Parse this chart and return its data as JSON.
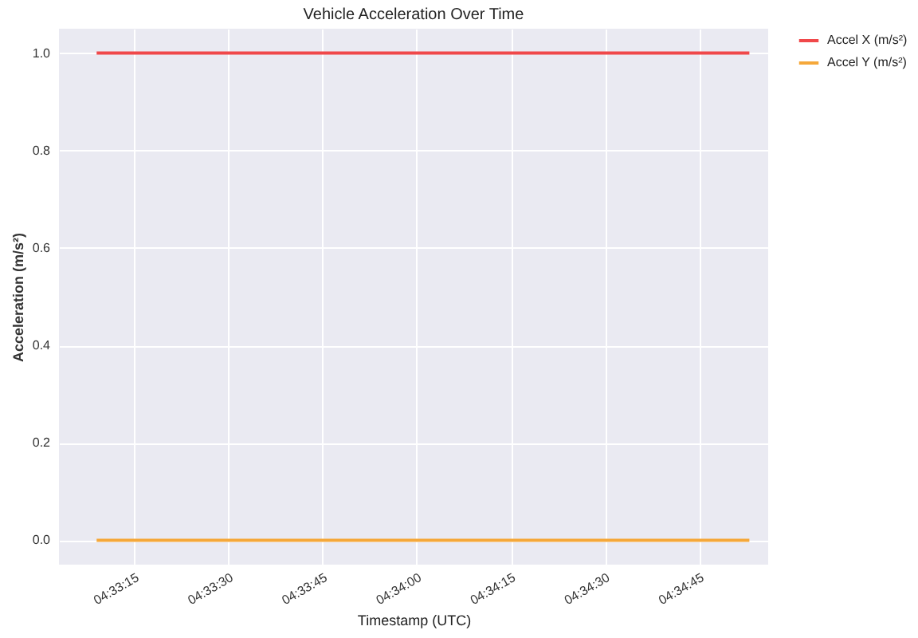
{
  "chart_data": {
    "type": "line",
    "title": "Vehicle Acceleration Over Time",
    "xlabel": "Timestamp (UTC)",
    "ylabel": "Acceleration (m/s²)",
    "x": [
      4.5525,
      4.581389
    ],
    "series": [
      {
        "name": "Accel X (m/s²)",
        "color": "#f0484a",
        "values": [
          1.0,
          1.0
        ]
      },
      {
        "name": "Accel Y (m/s²)",
        "color": "#f5a83a",
        "values": [
          0.0,
          0.0
        ]
      }
    ],
    "xlim": [
      4.550833,
      4.582222
    ],
    "xticks": [
      {
        "value": 4.554167,
        "label": "04:33:15"
      },
      {
        "value": 4.558333,
        "label": "04:33:30"
      },
      {
        "value": 4.5625,
        "label": "04:33:45"
      },
      {
        "value": 4.566667,
        "label": "04:34:00"
      },
      {
        "value": 4.570833,
        "label": "04:34:15"
      },
      {
        "value": 4.575,
        "label": "04:34:30"
      },
      {
        "value": 4.579167,
        "label": "04:34:45"
      }
    ],
    "ylim": [
      -0.05,
      1.05
    ],
    "yticks": [
      {
        "value": 0,
        "label": "0.0"
      },
      0.2,
      0.4,
      0.6,
      0.8,
      {
        "value": 1,
        "label": "1.0"
      }
    ],
    "grid": true,
    "legend": "right",
    "marker": "none",
    "line_style": "solid"
  }
}
